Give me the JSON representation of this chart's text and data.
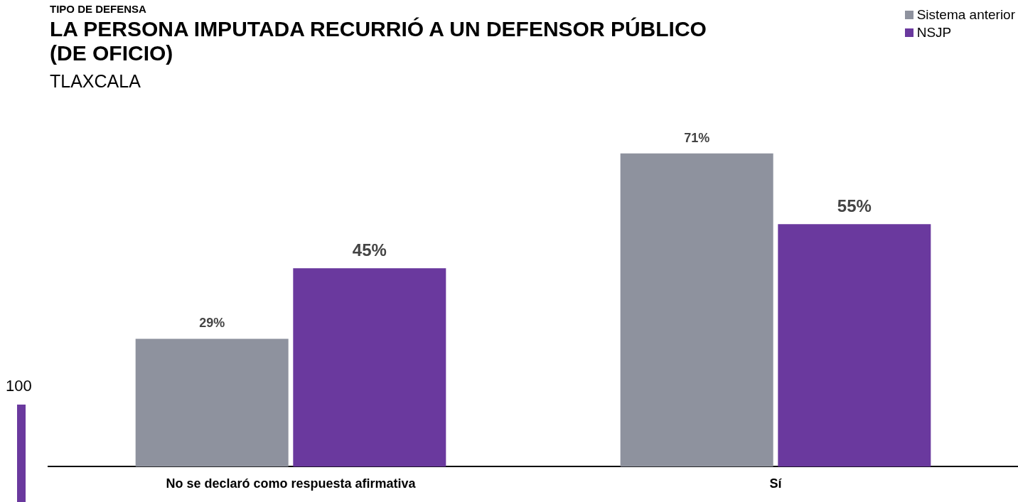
{
  "chart_data": {
    "type": "bar",
    "title": "LA PERSONA IMPUTADA RECURRIÓ A UN DEFENSOR PÚBLICO (DE OFICIO)",
    "subtitle": "TLAXCALA",
    "annotations": [
      "TIPO DE DEFENSA",
      "100"
    ],
    "categories": [
      "No se declaró como respuesta afirmativa",
      "Sí"
    ],
    "series": [
      {
        "name": "Sistema anterior",
        "color": "#8e929e",
        "values": [
          29,
          71
        ],
        "value_labels": [
          "29%",
          "71%"
        ]
      },
      {
        "name": "NSJP",
        "color": "#6a399e",
        "values": [
          45,
          55
        ],
        "value_labels": [
          "45%",
          "55%"
        ]
      }
    ],
    "legend": "top right",
    "grid": false,
    "tick_labels": "x"
  }
}
